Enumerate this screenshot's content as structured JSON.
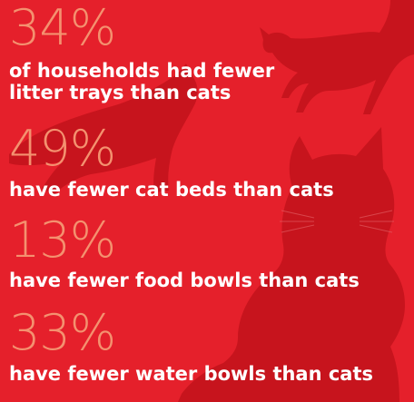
{
  "colors": {
    "background": "#e5202b",
    "silhouette": "#c7141d",
    "percent": "#f4916f",
    "text": "#ffffff"
  },
  "stats": [
    {
      "percent": "34%",
      "line1": "of households had fewer",
      "line2": "litter trays than cats"
    },
    {
      "percent": "49%",
      "line1": "have fewer cat beds than cats"
    },
    {
      "percent": "13%",
      "line1": "have fewer food bowls than cats"
    },
    {
      "percent": "33%",
      "line1": "have fewer water bowls than cats"
    }
  ]
}
